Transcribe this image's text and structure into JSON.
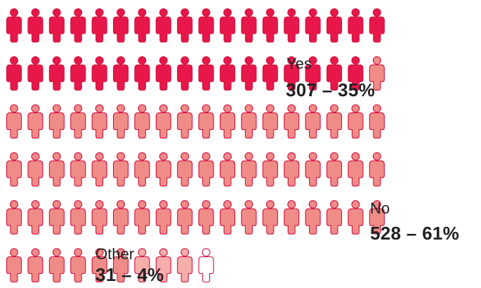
{
  "chart_data": {
    "type": "pictogram",
    "categories": [
      {
        "name": "Yes",
        "count": 307,
        "percent": "35%",
        "value_label": "307 – 35%",
        "icons": 35,
        "color": "#e8174a",
        "stroke": "#d1123f"
      },
      {
        "name": "No",
        "count": 528,
        "percent": "61%",
        "value_label": "528 – 61%",
        "icons": 61,
        "color": "#f08c87",
        "stroke": "#d2103f"
      },
      {
        "name": "Other",
        "count": 31,
        "percent": "4%",
        "value_label": "31 – 4%",
        "icons": 4,
        "color": "#f6aeaa",
        "stroke": "#d2103f"
      }
    ],
    "icon_unit": "person",
    "icons_per_row": 18
  }
}
